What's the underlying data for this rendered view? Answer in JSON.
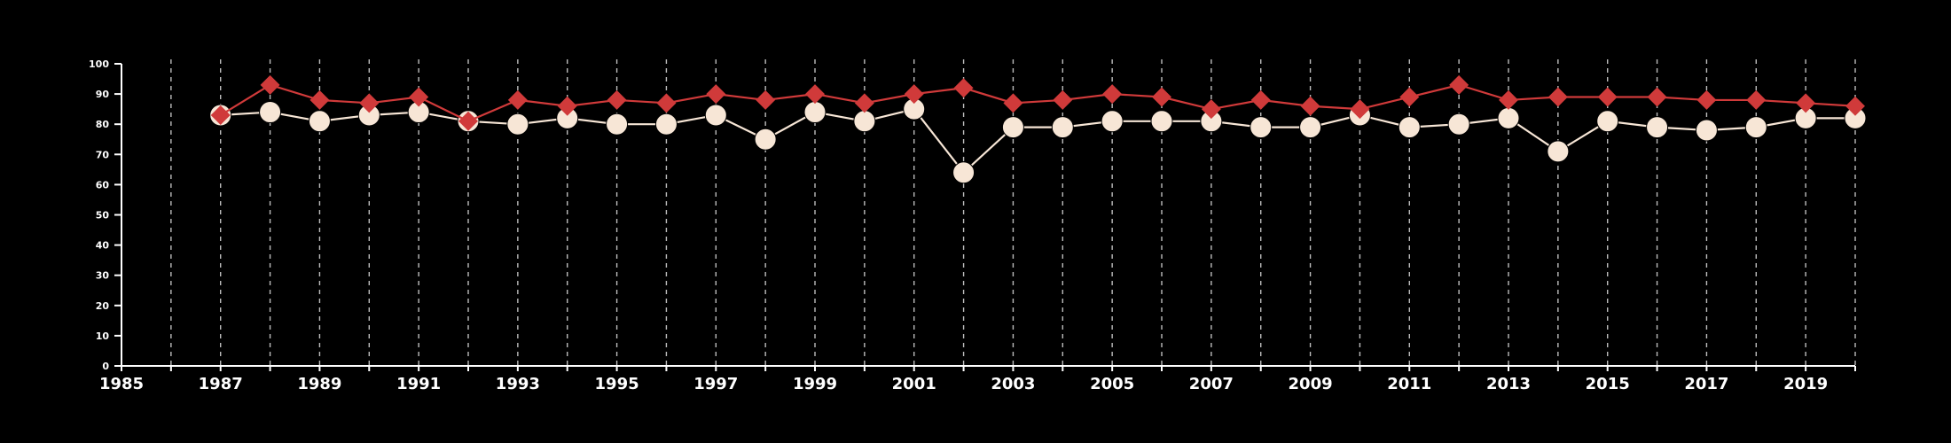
{
  "chart_data": {
    "type": "line",
    "title": "",
    "xlabel": "",
    "ylabel": "",
    "xlim": [
      1985,
      2020
    ],
    "ylim": [
      0,
      100
    ],
    "x_ticks": [
      1985,
      1987,
      1989,
      1991,
      1993,
      1995,
      1997,
      1999,
      2001,
      2003,
      2005,
      2007,
      2009,
      2011,
      2013,
      2015,
      2017,
      2019
    ],
    "y_ticks": [
      0,
      10,
      20,
      30,
      40,
      50,
      60,
      70,
      80,
      90,
      100
    ],
    "grid": "vertical dashed, every year",
    "legend": "none",
    "x": [
      1987,
      1988,
      1989,
      1990,
      1991,
      1992,
      1993,
      1994,
      1995,
      1996,
      1997,
      1998,
      1999,
      2000,
      2001,
      2002,
      2003,
      2004,
      2005,
      2006,
      2007,
      2008,
      2009,
      2010,
      2011,
      2012,
      2013,
      2014,
      2015,
      2016,
      2017,
      2018,
      2019,
      2020
    ],
    "series": [
      {
        "marker": "diamond",
        "color": "#d03a3a",
        "values": [
          83,
          93,
          88,
          87,
          89,
          81,
          88,
          86,
          88,
          87,
          90,
          88,
          90,
          87,
          90,
          92,
          87,
          88,
          90,
          89,
          85,
          88,
          86,
          85,
          89,
          93,
          88,
          89,
          89,
          89,
          88,
          88,
          87,
          86
        ]
      },
      {
        "marker": "circle",
        "color": "#f7e6d6",
        "values": [
          83,
          84,
          81,
          83,
          84,
          81,
          80,
          82,
          80,
          80,
          83,
          75,
          84,
          81,
          85,
          64,
          79,
          79,
          81,
          81,
          81,
          79,
          79,
          83,
          79,
          80,
          82,
          71,
          81,
          79,
          78,
          79,
          82,
          82
        ]
      }
    ],
    "colors": {
      "background": "#000000",
      "axis": "#ffffff",
      "grid": "#bdbdbd"
    }
  }
}
